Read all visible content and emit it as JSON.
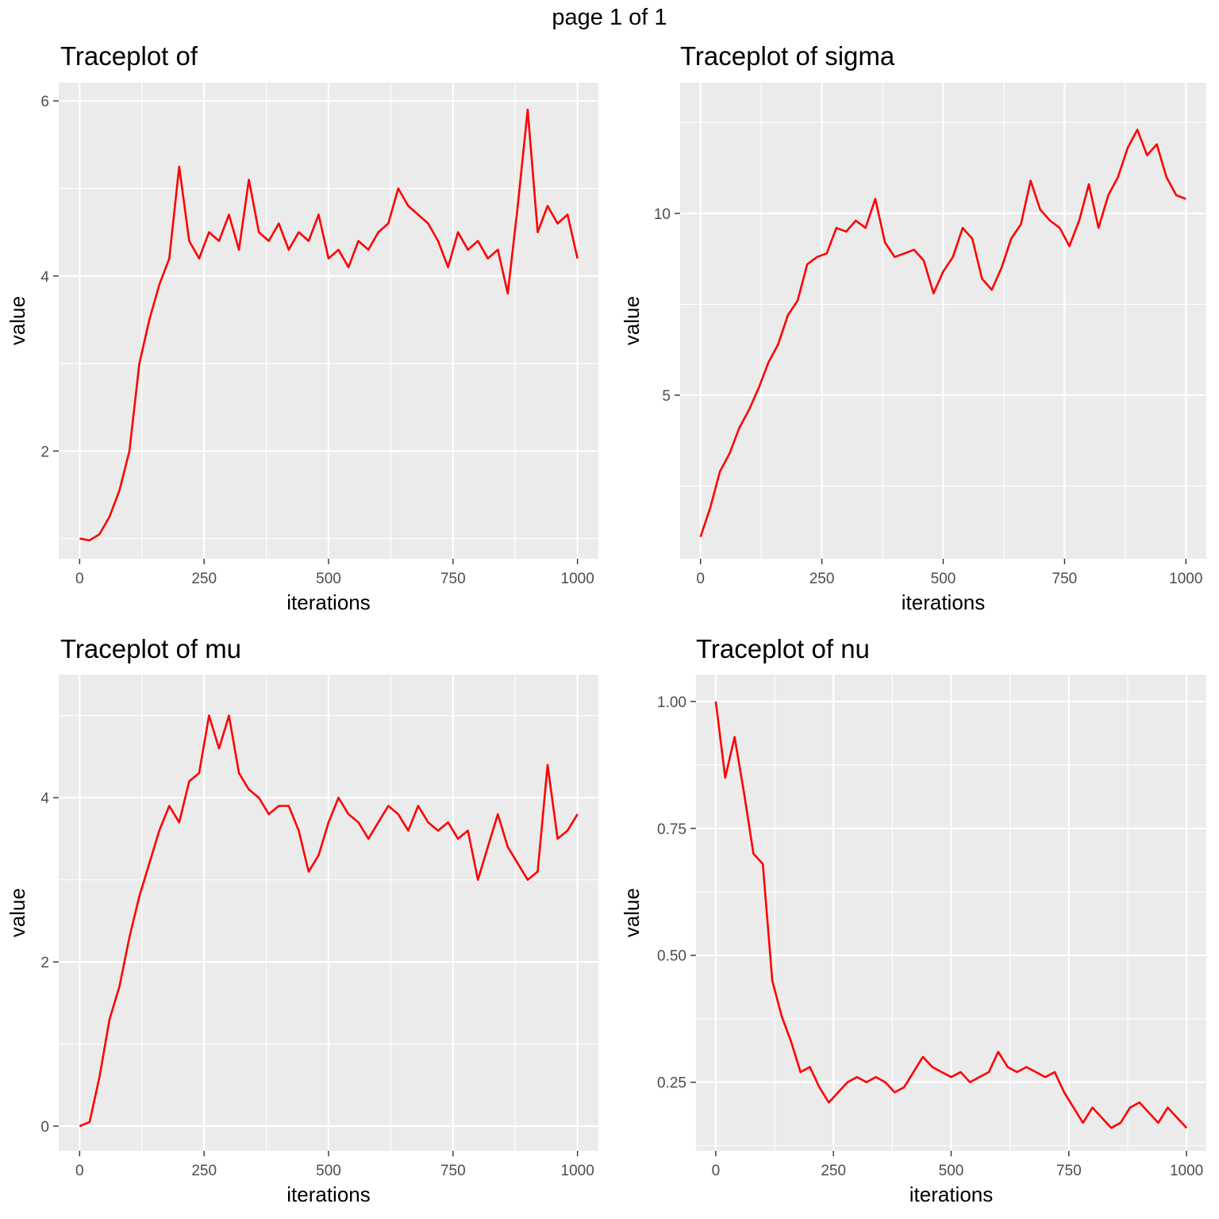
{
  "page_title": "page 1 of 1",
  "line_color": "#FF0000",
  "panel_background": "#EBEBEB",
  "grid_color": "#FFFFFF",
  "chart_data": [
    {
      "type": "line",
      "title": "Traceplot of",
      "xlabel": "iterations",
      "ylabel": "value",
      "xlim": [
        -42,
        1042
      ],
      "ylim": [
        0.77,
        6.21
      ],
      "xticks": [
        0,
        250,
        500,
        750,
        1000
      ],
      "xtick_labels": [
        "0",
        "250",
        "500",
        "750",
        "1000"
      ],
      "yticks": [
        2,
        4,
        6
      ],
      "ytick_labels": [
        "2",
        "4",
        "6"
      ],
      "grid": true,
      "series": [
        {
          "x": [
            0,
            20,
            40,
            60,
            80,
            100,
            120,
            140,
            160,
            180,
            200,
            220,
            240,
            260,
            280,
            300,
            320,
            340,
            360,
            380,
            400,
            420,
            440,
            460,
            480,
            500,
            520,
            540,
            560,
            580,
            600,
            620,
            640,
            660,
            680,
            700,
            720,
            740,
            760,
            780,
            800,
            820,
            840,
            860,
            880,
            900,
            920,
            940,
            960,
            980,
            1000
          ],
          "y": [
            1.0,
            0.98,
            1.05,
            1.25,
            1.55,
            2.0,
            3.0,
            3.5,
            3.9,
            4.2,
            5.25,
            4.4,
            4.2,
            4.5,
            4.4,
            4.7,
            4.3,
            5.1,
            4.5,
            4.4,
            4.6,
            4.3,
            4.5,
            4.4,
            4.7,
            4.2,
            4.3,
            4.1,
            4.4,
            4.3,
            4.5,
            4.6,
            5.0,
            4.8,
            4.7,
            4.6,
            4.4,
            4.1,
            4.5,
            4.3,
            4.4,
            4.2,
            4.3,
            3.8,
            4.8,
            5.9,
            4.5,
            4.8,
            4.6,
            4.7,
            4.2
          ]
        }
      ]
    },
    {
      "type": "line",
      "title": "Traceplot of sigma",
      "xlabel": "iterations",
      "ylabel": "value",
      "xlim": [
        -42,
        1042
      ],
      "ylim": [
        0.5,
        13.6
      ],
      "xticks": [
        0,
        250,
        500,
        750,
        1000
      ],
      "xtick_labels": [
        "0",
        "250",
        "500",
        "750",
        "1000"
      ],
      "yticks": [
        5,
        10
      ],
      "ytick_labels": [
        "5",
        "10"
      ],
      "grid": true,
      "series": [
        {
          "x": [
            0,
            20,
            40,
            60,
            80,
            100,
            120,
            140,
            160,
            180,
            200,
            220,
            240,
            260,
            280,
            300,
            320,
            340,
            360,
            380,
            400,
            420,
            440,
            460,
            480,
            500,
            520,
            540,
            560,
            580,
            600,
            620,
            640,
            660,
            680,
            700,
            720,
            740,
            760,
            780,
            800,
            820,
            840,
            860,
            880,
            900,
            920,
            940,
            960,
            980,
            1000
          ],
          "y": [
            1.1,
            1.9,
            2.9,
            3.4,
            4.1,
            4.6,
            5.2,
            5.9,
            6.4,
            7.2,
            7.6,
            8.6,
            8.8,
            8.9,
            9.6,
            9.5,
            9.8,
            9.6,
            10.4,
            9.2,
            8.8,
            8.9,
            9.0,
            8.7,
            7.8,
            8.4,
            8.8,
            9.6,
            9.3,
            8.2,
            7.9,
            8.5,
            9.3,
            9.7,
            10.9,
            10.1,
            9.8,
            9.6,
            9.1,
            9.8,
            10.8,
            9.6,
            10.5,
            11.0,
            11.8,
            12.3,
            11.6,
            11.9,
            11.0,
            10.5,
            10.4
          ]
        }
      ]
    },
    {
      "type": "line",
      "title": "Traceplot of mu",
      "xlabel": "iterations",
      "ylabel": "value",
      "xlim": [
        -42,
        1042
      ],
      "ylim": [
        -0.3,
        5.5
      ],
      "xticks": [
        0,
        250,
        500,
        750,
        1000
      ],
      "xtick_labels": [
        "0",
        "250",
        "500",
        "750",
        "1000"
      ],
      "yticks": [
        0,
        2,
        4
      ],
      "ytick_labels": [
        "0",
        "2",
        "4"
      ],
      "grid": true,
      "series": [
        {
          "x": [
            0,
            20,
            40,
            60,
            80,
            100,
            120,
            140,
            160,
            180,
            200,
            220,
            240,
            260,
            280,
            300,
            320,
            340,
            360,
            380,
            400,
            420,
            440,
            460,
            480,
            500,
            520,
            540,
            560,
            580,
            600,
            620,
            640,
            660,
            680,
            700,
            720,
            740,
            760,
            780,
            800,
            820,
            840,
            860,
            880,
            900,
            920,
            940,
            960,
            980,
            1000
          ],
          "y": [
            0.0,
            0.05,
            0.6,
            1.3,
            1.7,
            2.3,
            2.8,
            3.2,
            3.6,
            3.9,
            3.7,
            4.2,
            4.3,
            5.0,
            4.6,
            5.0,
            4.3,
            4.1,
            4.0,
            3.8,
            3.9,
            3.9,
            3.6,
            3.1,
            3.3,
            3.7,
            4.0,
            3.8,
            3.7,
            3.5,
            3.7,
            3.9,
            3.8,
            3.6,
            3.9,
            3.7,
            3.6,
            3.7,
            3.5,
            3.6,
            3.0,
            3.4,
            3.8,
            3.4,
            3.2,
            3.0,
            3.1,
            4.4,
            3.5,
            3.6,
            3.8
          ]
        }
      ]
    },
    {
      "type": "line",
      "title": "Traceplot of nu",
      "xlabel": "iterations",
      "ylabel": "value",
      "xlim": [
        -42,
        1042
      ],
      "ylim": [
        0.115,
        1.053
      ],
      "xticks": [
        0,
        250,
        500,
        750,
        1000
      ],
      "xtick_labels": [
        "0",
        "250",
        "500",
        "750",
        "1000"
      ],
      "yticks": [
        0.25,
        0.5,
        0.75,
        1.0
      ],
      "ytick_labels": [
        "0.25",
        "0.50",
        "0.75",
        "1.00"
      ],
      "grid": true,
      "series": [
        {
          "x": [
            0,
            20,
            40,
            60,
            80,
            100,
            120,
            140,
            160,
            180,
            200,
            220,
            240,
            260,
            280,
            300,
            320,
            340,
            360,
            380,
            400,
            420,
            440,
            460,
            480,
            500,
            520,
            540,
            560,
            580,
            600,
            620,
            640,
            660,
            680,
            700,
            720,
            740,
            760,
            780,
            800,
            820,
            840,
            860,
            880,
            900,
            920,
            940,
            960,
            980,
            1000
          ],
          "y": [
            1.0,
            0.85,
            0.93,
            0.82,
            0.7,
            0.68,
            0.45,
            0.38,
            0.33,
            0.27,
            0.28,
            0.24,
            0.21,
            0.23,
            0.25,
            0.26,
            0.25,
            0.26,
            0.25,
            0.23,
            0.24,
            0.27,
            0.3,
            0.28,
            0.27,
            0.26,
            0.27,
            0.25,
            0.26,
            0.27,
            0.31,
            0.28,
            0.27,
            0.28,
            0.27,
            0.26,
            0.27,
            0.23,
            0.2,
            0.17,
            0.2,
            0.18,
            0.16,
            0.17,
            0.2,
            0.21,
            0.19,
            0.17,
            0.2,
            0.18,
            0.16
          ]
        }
      ]
    }
  ]
}
